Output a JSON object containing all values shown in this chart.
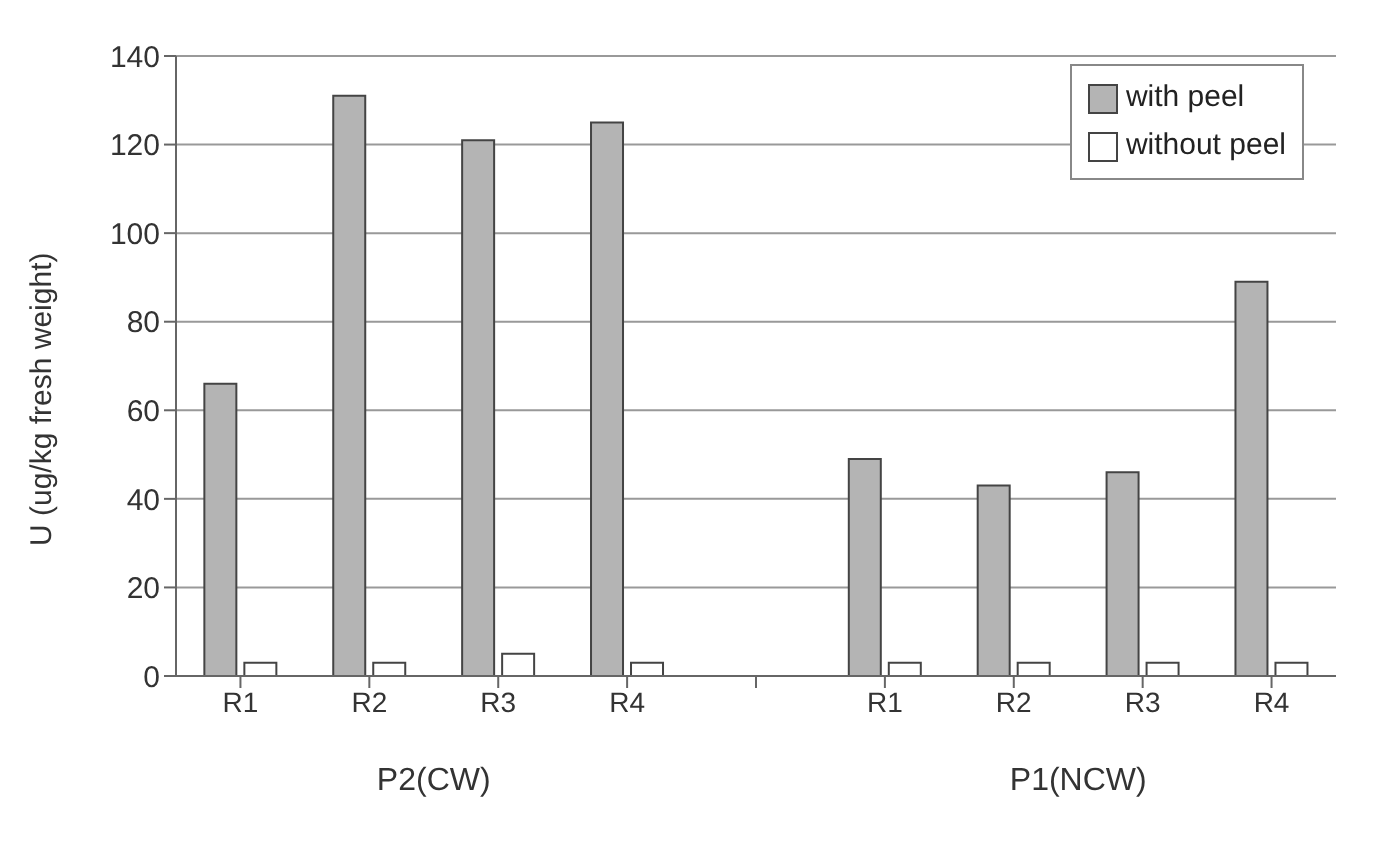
{
  "chart_data": {
    "type": "bar",
    "ylabel": "U (ug/kg fresh weight)",
    "categories": [
      "R1",
      "R2",
      "R3",
      "R4",
      null,
      "R1",
      "R2",
      "R3",
      "R4"
    ],
    "series": [
      {
        "name": "with peel",
        "color": "#b4b4b4",
        "values": [
          66,
          131,
          121,
          125,
          null,
          49,
          43,
          46,
          89
        ]
      },
      {
        "name": "without peel",
        "color": "#ffffff",
        "values": [
          3,
          3,
          5,
          3,
          null,
          3,
          3,
          3,
          3
        ]
      }
    ],
    "annotations": [
      "P2(CW)",
      "P1(NCW)"
    ],
    "ylim": [
      0,
      140
    ],
    "yticks": [
      0,
      20,
      40,
      60,
      80,
      100,
      120,
      140
    ],
    "grid": "y",
    "legend": "top right"
  }
}
